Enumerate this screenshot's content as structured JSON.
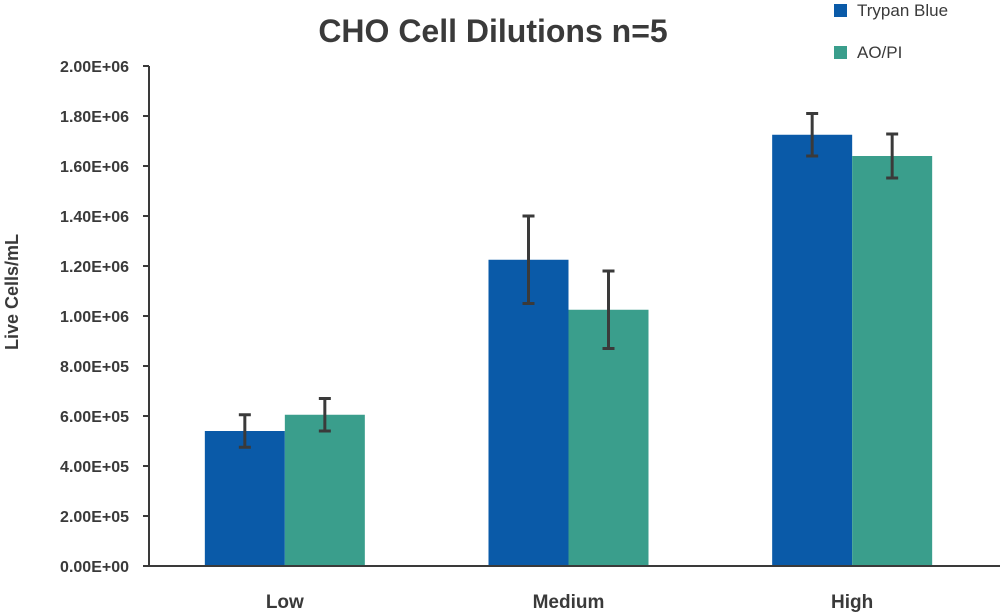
{
  "chart_data": {
    "type": "bar",
    "title": "CHO Cell Dilutions n=5",
    "xlabel": "",
    "ylabel": "Live Cells/mL",
    "categories": [
      "Low",
      "Medium",
      "High"
    ],
    "ylim": [
      0,
      2000000
    ],
    "y_ticks": [
      0,
      200000,
      400000,
      600000,
      800000,
      1000000,
      1200000,
      1400000,
      1600000,
      1800000,
      2000000
    ],
    "y_tick_labels": [
      "0.00E+00",
      "2.00E+05",
      "4.00E+05",
      "6.00E+05",
      "8.00E+05",
      "1.00E+06",
      "1.20E+06",
      "1.40E+06",
      "1.60E+06",
      "1.80E+06",
      "2.00E+06"
    ],
    "grid": false,
    "legend_position": "top-right",
    "series": [
      {
        "name": "Trypan Blue",
        "color": "#0a5aa8",
        "values": [
          540000,
          1225000,
          1725000
        ],
        "errors": [
          65000,
          175000,
          85000
        ]
      },
      {
        "name": "AO/PI",
        "color": "#3a9e8c",
        "values": [
          605000,
          1025000,
          1640000
        ],
        "errors": [
          65000,
          155000,
          88000
        ]
      }
    ]
  }
}
